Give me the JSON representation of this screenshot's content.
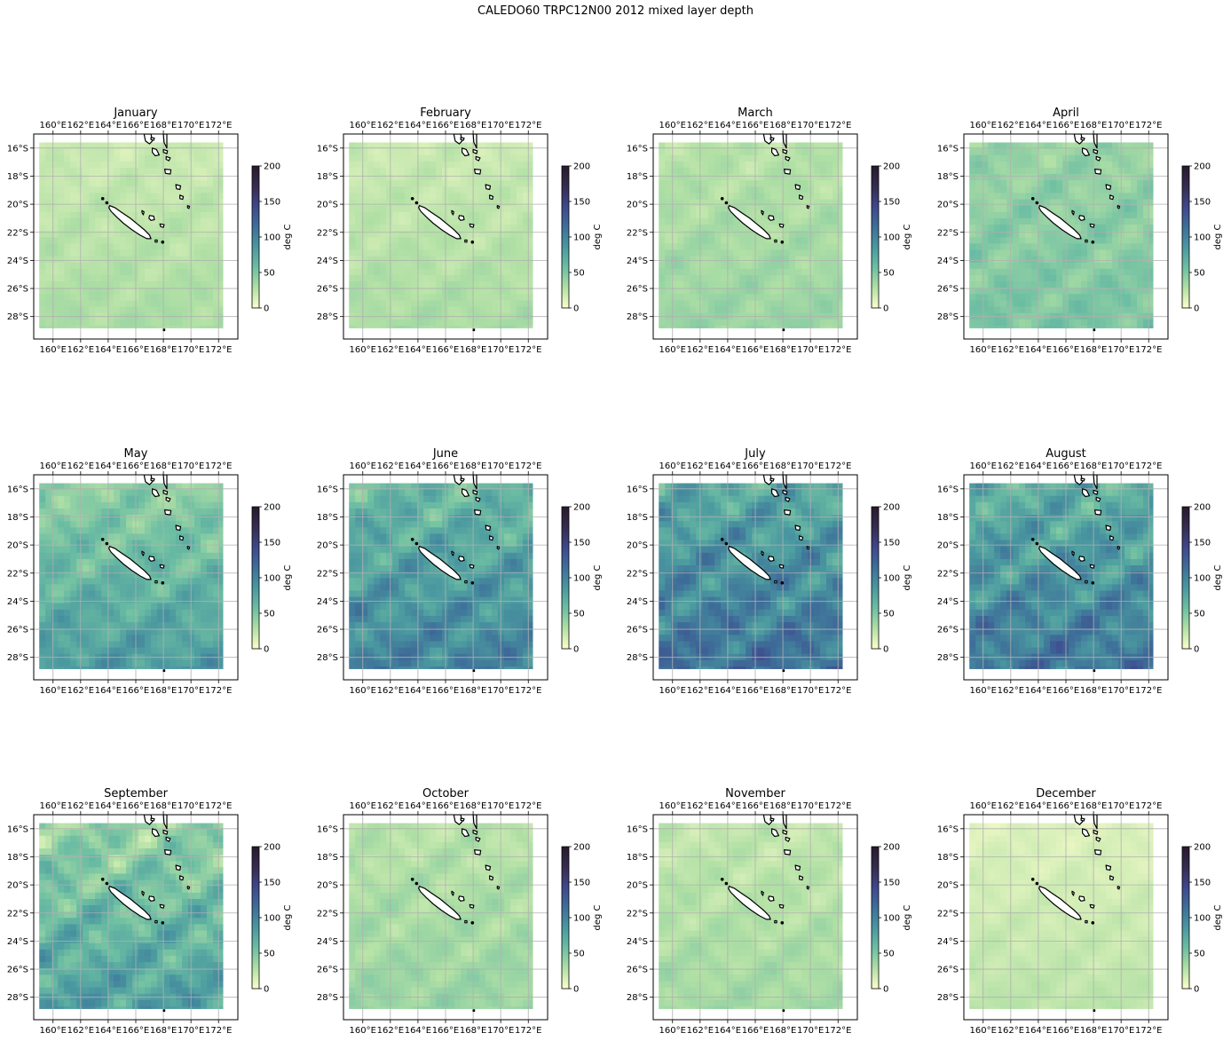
{
  "figure": {
    "title": "CALEDO60 TRPC12N00 2012 mixed layer depth"
  },
  "axes": {
    "lon_ticks": [
      "160°E",
      "162°E",
      "164°E",
      "166°E",
      "168°E",
      "170°E",
      "172°E"
    ],
    "lat_ticks": [
      "16°S",
      "18°S",
      "20°S",
      "22°S",
      "24°S",
      "26°S",
      "28°S"
    ],
    "lon_values": [
      160,
      162,
      164,
      166,
      168,
      170,
      172
    ],
    "lat_values": [
      -16,
      -18,
      -20,
      -22,
      -24,
      -26,
      -28
    ],
    "lon_range": [
      158.6,
      173.4
    ],
    "lat_range": [
      -29.6,
      -15.0
    ],
    "data_domain": {
      "lon": [
        159.0,
        172.3
      ],
      "lat": [
        -28.8,
        -15.6
      ]
    },
    "grid": true
  },
  "colorbar": {
    "label": "deg C",
    "ticks": [
      "0",
      "50",
      "100",
      "150",
      "200"
    ],
    "range": [
      0,
      200
    ],
    "colormap": "deep",
    "stops": [
      "#fdfecc",
      "#b1e0a5",
      "#6dbea3",
      "#4a98a0",
      "#3e6f99",
      "#3f478d",
      "#352c4f",
      "#281a2c"
    ]
  },
  "chart_data": {
    "type": "heatmap",
    "variable": "mixed layer depth",
    "panels": [
      {
        "month": "January",
        "typical_value": 25,
        "spread": 8
      },
      {
        "month": "February",
        "typical_value": 25,
        "spread": 8
      },
      {
        "month": "March",
        "typical_value": 32,
        "spread": 10
      },
      {
        "month": "April",
        "typical_value": 45,
        "spread": 15
      },
      {
        "month": "May",
        "typical_value": 62,
        "spread": 22
      },
      {
        "month": "June",
        "typical_value": 80,
        "spread": 28
      },
      {
        "month": "July",
        "typical_value": 92,
        "spread": 32
      },
      {
        "month": "August",
        "typical_value": 88,
        "spread": 32
      },
      {
        "month": "September",
        "typical_value": 60,
        "spread": 30
      },
      {
        "month": "October",
        "typical_value": 32,
        "spread": 12
      },
      {
        "month": "November",
        "typical_value": 28,
        "spread": 10
      },
      {
        "month": "December",
        "typical_value": 18,
        "spread": 6
      }
    ]
  }
}
